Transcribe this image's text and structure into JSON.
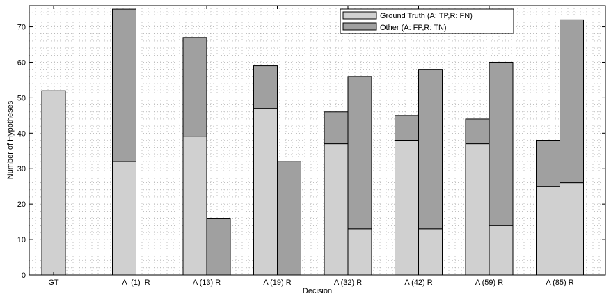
{
  "chart_data": {
    "type": "bar",
    "xlabel": "Decision",
    "ylabel": "Number of Hypotheses",
    "ylim": [
      0,
      76
    ],
    "yticks": [
      0,
      10,
      20,
      30,
      40,
      50,
      60,
      70
    ],
    "grid": "dotted",
    "legend_position": "top-right",
    "categories": [
      "GT",
      "A  (1)  R",
      "A (13) R",
      "A (19) R",
      "A (32) R",
      "A (42) R",
      "A (59) R",
      "A (85) R"
    ],
    "legend": [
      {
        "label": "Ground Truth (A: TP,R: FN)",
        "color": "#d0d0d0"
      },
      {
        "label": "Other (A: FP,R: TN)",
        "color": "#a0a0a0"
      }
    ],
    "bars": [
      {
        "category": "GT",
        "side": "single",
        "ground_truth": 52,
        "other": 0
      },
      {
        "category": "A  (1)  R",
        "side": "A",
        "ground_truth": 32,
        "other": 43
      },
      {
        "category": "A  (1)  R",
        "side": "R",
        "ground_truth": 0,
        "other": 0
      },
      {
        "category": "A (13) R",
        "side": "A",
        "ground_truth": 39,
        "other": 28
      },
      {
        "category": "A (13) R",
        "side": "R",
        "ground_truth": 0,
        "other": 16
      },
      {
        "category": "A (19) R",
        "side": "A",
        "ground_truth": 47,
        "other": 12
      },
      {
        "category": "A (19) R",
        "side": "R",
        "ground_truth": 0,
        "other": 32
      },
      {
        "category": "A (32) R",
        "side": "A",
        "ground_truth": 37,
        "other": 9
      },
      {
        "category": "A (32) R",
        "side": "R",
        "ground_truth": 13,
        "other": 43
      },
      {
        "category": "A (42) R",
        "side": "A",
        "ground_truth": 38,
        "other": 7
      },
      {
        "category": "A (42) R",
        "side": "R",
        "ground_truth": 13,
        "other": 45
      },
      {
        "category": "A (59) R",
        "side": "A",
        "ground_truth": 37,
        "other": 7
      },
      {
        "category": "A (59) R",
        "side": "R",
        "ground_truth": 14,
        "other": 46
      },
      {
        "category": "A (85) R",
        "side": "A",
        "ground_truth": 25,
        "other": 13
      },
      {
        "category": "A (85) R",
        "side": "R",
        "ground_truth": 26,
        "other": 46
      }
    ]
  }
}
